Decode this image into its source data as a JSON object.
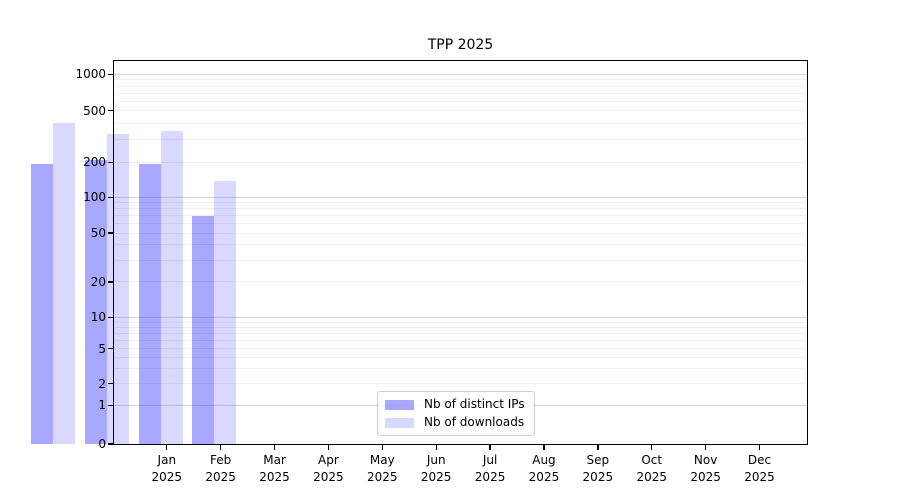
{
  "page": {
    "background": "#ffffff"
  },
  "chart_data": {
    "type": "bar",
    "title": "TPP 2025",
    "categories": [
      "Jan 2025",
      "Feb 2025",
      "Mar 2025",
      "Apr 2025",
      "May 2025",
      "Jun 2025",
      "Jul 2025",
      "Aug 2025",
      "Sep 2025",
      "Oct 2025",
      "Nov 2025",
      "Dec 2025"
    ],
    "months": [
      "Jan",
      "Feb",
      "Mar",
      "Apr",
      "May",
      "Jun",
      "Jul",
      "Aug",
      "Sep",
      "Oct",
      "Nov",
      "Dec"
    ],
    "year": "2025",
    "series": [
      {
        "name": "Nb of distinct IPs",
        "color_hex": "#a8a8ff",
        "color_css": "rgba(0,0,255,0.34)",
        "values": [
          194,
          209,
          194,
          69,
          null,
          null,
          null,
          null,
          null,
          null,
          null,
          null
        ]
      },
      {
        "name": "Nb of downloads",
        "color_hex": "#d9d9ff",
        "color_css": "rgba(0,0,255,0.15)",
        "values": [
          405,
          330,
          350,
          138,
          null,
          null,
          null,
          null,
          null,
          null,
          null,
          null
        ]
      }
    ],
    "y_axis": {
      "scale": "symlog",
      "ticks": [
        0,
        1,
        2,
        5,
        10,
        20,
        50,
        100,
        200,
        500,
        1000
      ],
      "max": 1280
    },
    "x_axis": {
      "label_line2": "2025"
    },
    "grid": {
      "enabled": true,
      "major_values": [
        1,
        10,
        100,
        1000
      ],
      "major_color": "#d5d5d5",
      "minor_color": "#efefef"
    },
    "legend": {
      "position": "lower center-left",
      "items": [
        "Nb of distinct IPs",
        "Nb of downloads"
      ]
    }
  }
}
